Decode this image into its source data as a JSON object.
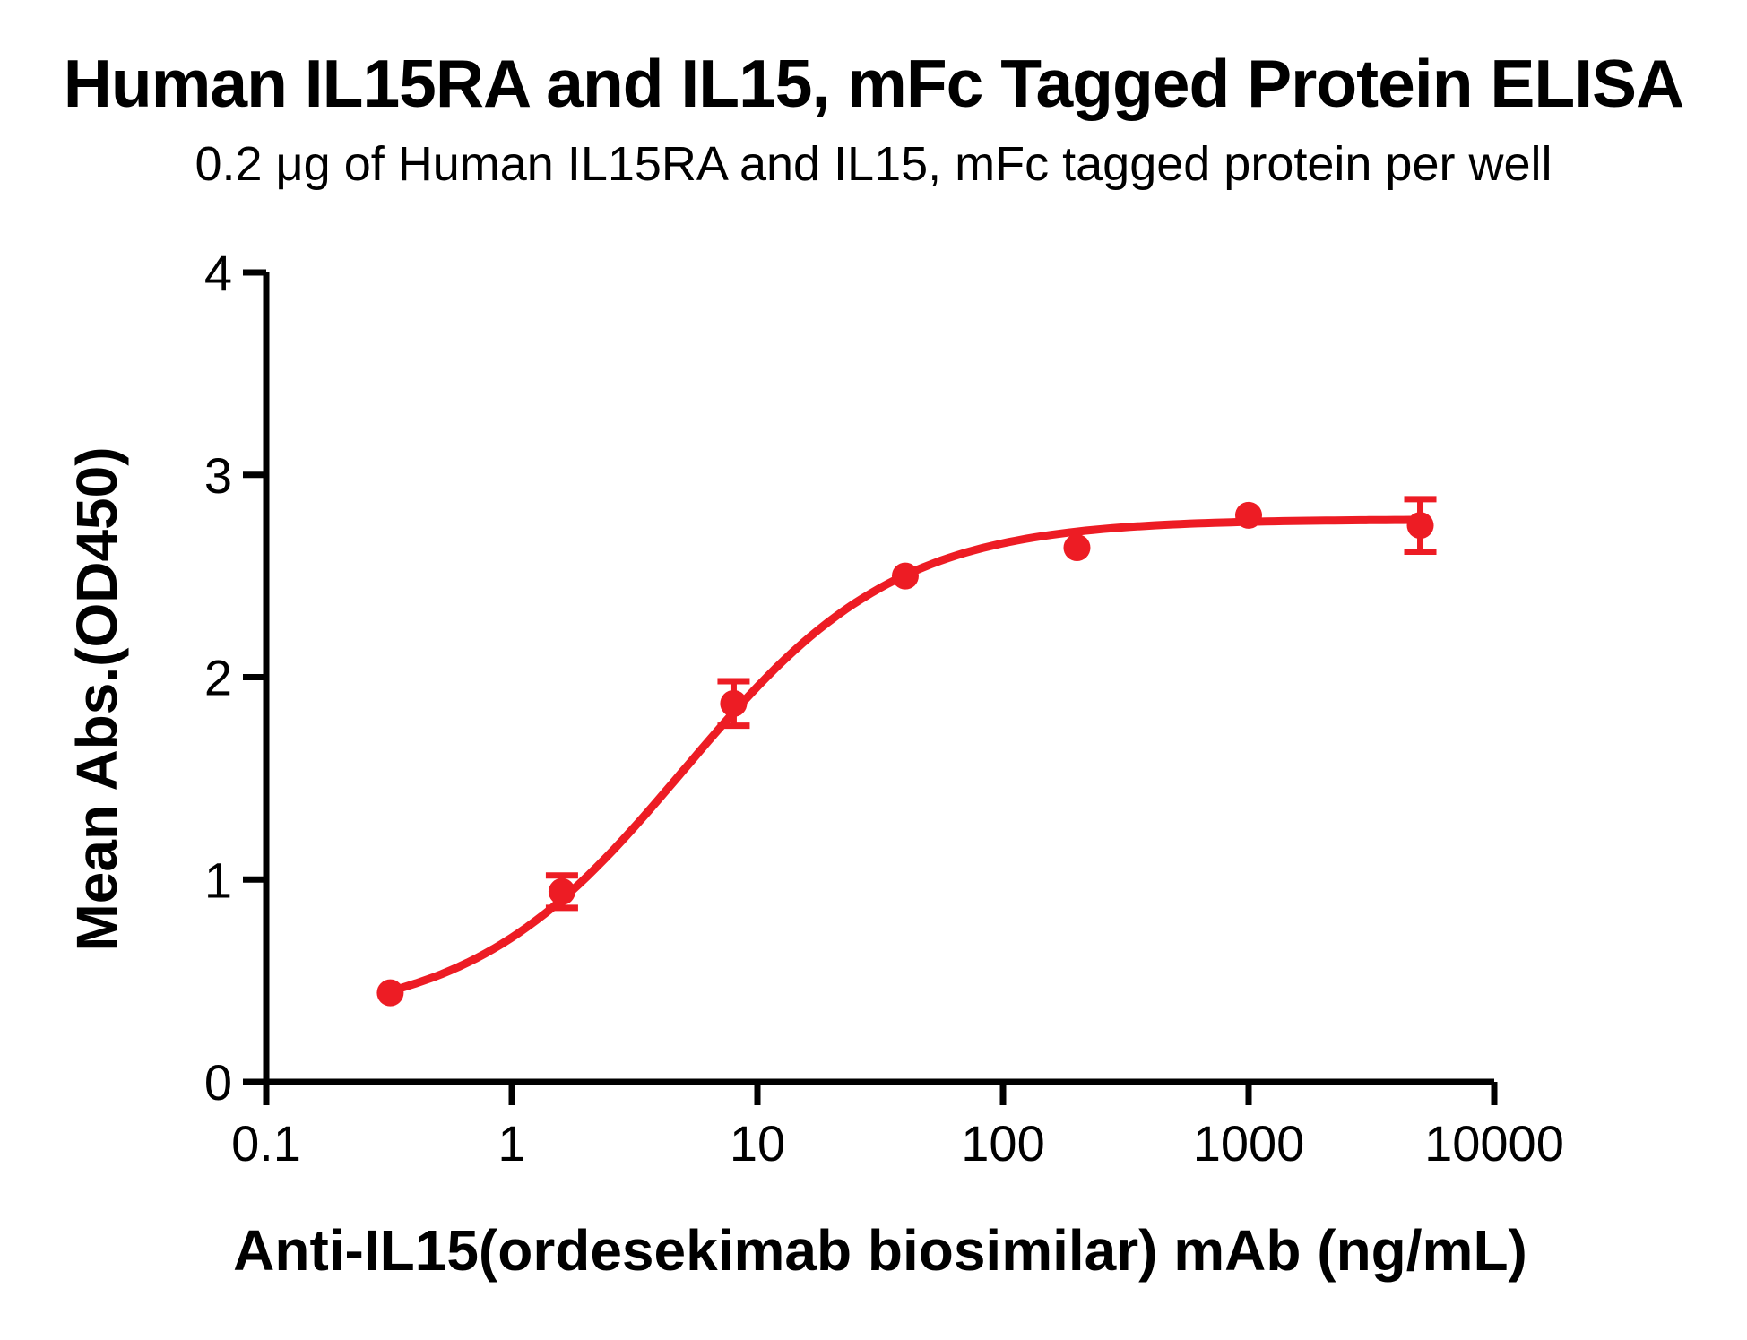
{
  "chart_data": {
    "type": "scatter",
    "title": "Human IL15RA and IL15, mFc Tagged Protein ELISA",
    "subtitle": "0.2 μg of Human IL15RA and IL15, mFc tagged protein per well",
    "xlabel": "Anti-IL15(ordesekimab biosimilar) mAb (ng/mL)",
    "ylabel": "Mean Abs.(OD450)",
    "x_scale": "log",
    "xlim": [
      0.1,
      10000
    ],
    "ylim": [
      0,
      4
    ],
    "x_ticks": [
      0.1,
      1,
      10,
      100,
      1000,
      10000
    ],
    "x_tick_labels": [
      "0.1",
      "1",
      "10",
      "100",
      "1000",
      "10000"
    ],
    "y_ticks": [
      0,
      1,
      2,
      3,
      4
    ],
    "y_tick_labels": [
      "0",
      "1",
      "2",
      "3",
      "4"
    ],
    "grid": false,
    "legend": false,
    "axis_color": "#000000",
    "background_color": "#ffffff",
    "series": [
      {
        "name": "Anti-IL15(ordesekimab biosimilar) mAb",
        "color": "#ED1C24",
        "marker": "circle",
        "points": [
          {
            "x": 0.32,
            "y": 0.44,
            "err": 0
          },
          {
            "x": 1.6,
            "y": 0.94,
            "err": 0.08
          },
          {
            "x": 8,
            "y": 1.87,
            "err": 0.11
          },
          {
            "x": 40,
            "y": 2.5,
            "err": 0
          },
          {
            "x": 200,
            "y": 2.64,
            "err": 0
          },
          {
            "x": 1000,
            "y": 2.8,
            "err": 0
          },
          {
            "x": 5000,
            "y": 2.75,
            "err": 0.13
          }
        ],
        "fit_curve": {
          "model": "4PL",
          "bottom": 0.3,
          "top": 2.78,
          "ec50": 5.0,
          "hill": 1.0
        }
      }
    ]
  }
}
